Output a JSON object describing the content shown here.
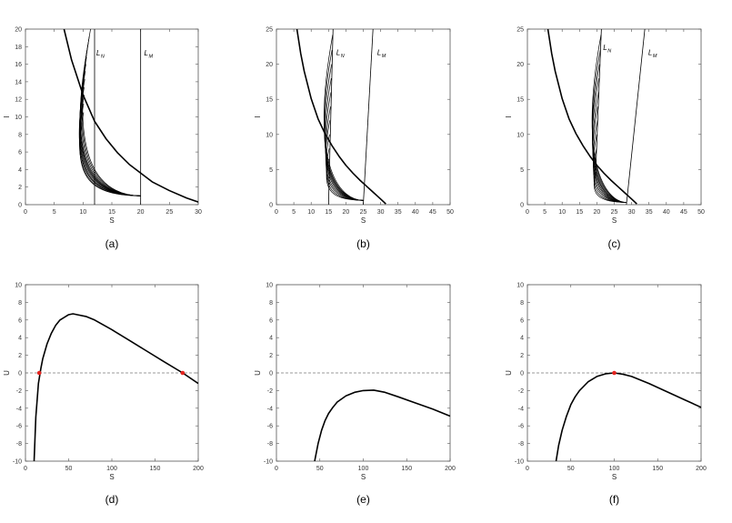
{
  "chart_data": [
    {
      "type": "line",
      "caption": "(a)",
      "xlabel": "S",
      "ylabel": "I",
      "xlim": [
        0,
        30
      ],
      "ylim": [
        0,
        20
      ],
      "xticks": [
        0,
        5,
        10,
        15,
        20,
        25,
        30
      ],
      "yticks": [
        0,
        2,
        4,
        6,
        8,
        10,
        12,
        14,
        16,
        18,
        20
      ],
      "grid": false,
      "nullcline": {
        "x": [
          6.7,
          8,
          10,
          12,
          14,
          16,
          18,
          20,
          22,
          25,
          28,
          30
        ],
        "y": [
          20,
          16.5,
          12.5,
          9.5,
          7.5,
          5.9,
          4.6,
          3.6,
          2.6,
          1.6,
          0.75,
          0.3
        ]
      },
      "vertical_lines": [
        {
          "name": "LN",
          "x1": 12,
          "y1": 0,
          "x2": 12,
          "y2": 20,
          "label_main": "L",
          "label_sub": "N",
          "label_x": 12.3,
          "label_y": 17
        },
        {
          "name": "LM",
          "x1": 20,
          "y1": 0,
          "x2": 20,
          "y2": 20,
          "label_main": "L",
          "label_sub": "M",
          "label_x": 20.6,
          "label_y": 17
        }
      ],
      "fan": {
        "endpoint": {
          "x": 20,
          "y": 1.0
        },
        "starts": [
          {
            "x": 11.3,
            "y": 20
          },
          {
            "x": 11.1,
            "y": 19.2
          },
          {
            "x": 10.9,
            "y": 18.4
          },
          {
            "x": 10.7,
            "y": 17.6
          },
          {
            "x": 10.6,
            "y": 16.8
          },
          {
            "x": 10.5,
            "y": 16.0
          },
          {
            "x": 10.4,
            "y": 15.2
          },
          {
            "x": 10.3,
            "y": 14.3
          },
          {
            "x": 10.2,
            "y": 13.4
          },
          {
            "x": 10.2,
            "y": 12.5
          },
          {
            "x": 10.1,
            "y": 11.5
          },
          {
            "x": 10.1,
            "y": 10.5
          }
        ]
      },
      "points": []
    },
    {
      "type": "line",
      "caption": "(b)",
      "xlabel": "S",
      "ylabel": "I",
      "xlim": [
        0,
        50
      ],
      "ylim": [
        0,
        25
      ],
      "xticks": [
        0,
        5,
        10,
        15,
        20,
        25,
        30,
        35,
        40,
        45,
        50
      ],
      "yticks": [
        0,
        5,
        10,
        15,
        20,
        25
      ],
      "grid": false,
      "nullcline": {
        "x": [
          5.9,
          7,
          8,
          10,
          12,
          14,
          16,
          18,
          20,
          22,
          24,
          26,
          28,
          30,
          31.5
        ],
        "y": [
          25,
          21.5,
          19,
          15.1,
          12.2,
          10.1,
          8.4,
          6.9,
          5.6,
          4.5,
          3.5,
          2.6,
          1.7,
          0.8,
          0.1
        ]
      },
      "vertical_lines": [
        {
          "name": "LN",
          "x1": 15,
          "y1": 0,
          "x2": 16.3,
          "y2": 25,
          "label_main": "L",
          "label_sub": "N",
          "label_x": 17.2,
          "label_y": 21.3
        },
        {
          "name": "LM",
          "x1": 25,
          "y1": 0,
          "x2": 27.8,
          "y2": 25,
          "label_main": "L",
          "label_sub": "M",
          "label_x": 29.0,
          "label_y": 21.3
        }
      ],
      "fan": {
        "endpoint": {
          "x": 25,
          "y": 0.6
        },
        "starts": [
          {
            "x": 16.2,
            "y": 24.2
          },
          {
            "x": 16.0,
            "y": 22.0
          },
          {
            "x": 15.9,
            "y": 20.0
          },
          {
            "x": 15.8,
            "y": 18.0
          },
          {
            "x": 15.7,
            "y": 16.0
          },
          {
            "x": 15.6,
            "y": 14.0
          },
          {
            "x": 15.4,
            "y": 12.0
          },
          {
            "x": 15.3,
            "y": 10.0
          },
          {
            "x": 15.2,
            "y": 8.0
          },
          {
            "x": 15.1,
            "y": 6.5
          }
        ]
      },
      "points": []
    },
    {
      "type": "line",
      "caption": "(c)",
      "xlabel": "S",
      "ylabel": "I",
      "xlim": [
        0,
        50
      ],
      "ylim": [
        0,
        25
      ],
      "xticks": [
        0,
        5,
        10,
        15,
        20,
        25,
        30,
        35,
        40,
        45,
        50
      ],
      "yticks": [
        0,
        5,
        10,
        15,
        20,
        25
      ],
      "grid": false,
      "nullcline": {
        "x": [
          5.9,
          7,
          8,
          10,
          12,
          14,
          16,
          18,
          20,
          22,
          24,
          26,
          28,
          30,
          31.5
        ],
        "y": [
          25,
          21.5,
          19,
          15.1,
          12.2,
          10.1,
          8.4,
          6.9,
          5.6,
          4.5,
          3.5,
          2.6,
          1.7,
          0.8,
          0.1
        ]
      },
      "vertical_lines": [
        {
          "name": "LN",
          "x1": 19.6,
          "y1": 4,
          "x2": 21.3,
          "y2": 25,
          "label_main": "L",
          "label_sub": "N",
          "label_x": 21.8,
          "label_y": 22.0
        },
        {
          "name": "LM",
          "x1": 28.5,
          "y1": 0,
          "x2": 33.8,
          "y2": 25,
          "label_main": "L",
          "label_sub": "M",
          "label_x": 34.8,
          "label_y": 21.3
        }
      ],
      "fan": {
        "endpoint": {
          "x": 28.5,
          "y": 0.3
        },
        "starts": [
          {
            "x": 21.2,
            "y": 24.2
          },
          {
            "x": 21.0,
            "y": 22.0
          },
          {
            "x": 20.8,
            "y": 20.0
          },
          {
            "x": 20.6,
            "y": 18.0
          },
          {
            "x": 20.5,
            "y": 16.0
          },
          {
            "x": 20.3,
            "y": 14.0
          },
          {
            "x": 20.2,
            "y": 12.0
          },
          {
            "x": 20.0,
            "y": 10.0
          },
          {
            "x": 19.9,
            "y": 8.0
          },
          {
            "x": 19.8,
            "y": 6.0
          },
          {
            "x": 19.7,
            "y": 4.5
          }
        ]
      },
      "points": []
    },
    {
      "type": "line",
      "caption": "(d)",
      "xlabel": "S",
      "ylabel": "U",
      "xlim": [
        0,
        200
      ],
      "ylim": [
        -10,
        10
      ],
      "xticks": [
        0,
        50,
        100,
        150,
        200
      ],
      "yticks": [
        -10,
        -8,
        -6,
        -4,
        -2,
        0,
        2,
        4,
        6,
        8,
        10
      ],
      "grid": false,
      "zero_line": true,
      "series": [
        {
          "x": [
            10,
            12,
            15,
            18,
            20,
            25,
            30,
            35,
            40,
            50,
            55,
            60,
            70,
            80,
            100,
            120,
            140,
            160,
            182,
            200
          ],
          "y": [
            -10,
            -5,
            -1.2,
            0.6,
            1.6,
            3.3,
            4.5,
            5.4,
            6.0,
            6.6,
            6.7,
            6.6,
            6.4,
            6.0,
            4.9,
            3.7,
            2.5,
            1.3,
            0,
            -1.2
          ]
        }
      ],
      "points": [
        {
          "x": 16,
          "y": 0
        },
        {
          "x": 182,
          "y": 0
        }
      ],
      "point_color": "#e52520"
    },
    {
      "type": "line",
      "caption": "(e)",
      "xlabel": "S",
      "ylabel": "U",
      "xlim": [
        0,
        200
      ],
      "ylim": [
        -10,
        10
      ],
      "xticks": [
        0,
        50,
        100,
        150,
        200
      ],
      "yticks": [
        -10,
        -8,
        -6,
        -4,
        -2,
        0,
        2,
        4,
        6,
        8,
        10
      ],
      "grid": false,
      "zero_line": true,
      "series": [
        {
          "x": [
            44,
            48,
            52,
            56,
            60,
            65,
            70,
            80,
            90,
            100,
            112,
            125,
            140,
            160,
            180,
            200
          ],
          "y": [
            -10,
            -8.0,
            -6.5,
            -5.4,
            -4.6,
            -3.9,
            -3.3,
            -2.6,
            -2.2,
            -2.0,
            -1.95,
            -2.2,
            -2.7,
            -3.4,
            -4.1,
            -4.9
          ]
        }
      ],
      "points": []
    },
    {
      "type": "line",
      "caption": "(f)",
      "xlabel": "S",
      "ylabel": "U",
      "xlim": [
        0,
        200
      ],
      "ylim": [
        -10,
        10
      ],
      "xticks": [
        0,
        50,
        100,
        150,
        200
      ],
      "yticks": [
        -10,
        -8,
        -6,
        -4,
        -2,
        0,
        2,
        4,
        6,
        8,
        10
      ],
      "grid": false,
      "zero_line": true,
      "series": [
        {
          "x": [
            33,
            36,
            40,
            45,
            50,
            55,
            60,
            70,
            80,
            90,
            100,
            110,
            120,
            140,
            160,
            180,
            200
          ],
          "y": [
            -10,
            -8.2,
            -6.5,
            -4.9,
            -3.6,
            -2.7,
            -2.0,
            -1.0,
            -0.4,
            -0.1,
            0,
            -0.15,
            -0.4,
            -1.2,
            -2.1,
            -3.0,
            -3.9
          ]
        }
      ],
      "points": [
        {
          "x": 100,
          "y": 0
        }
      ],
      "point_color": "#e52520"
    }
  ]
}
